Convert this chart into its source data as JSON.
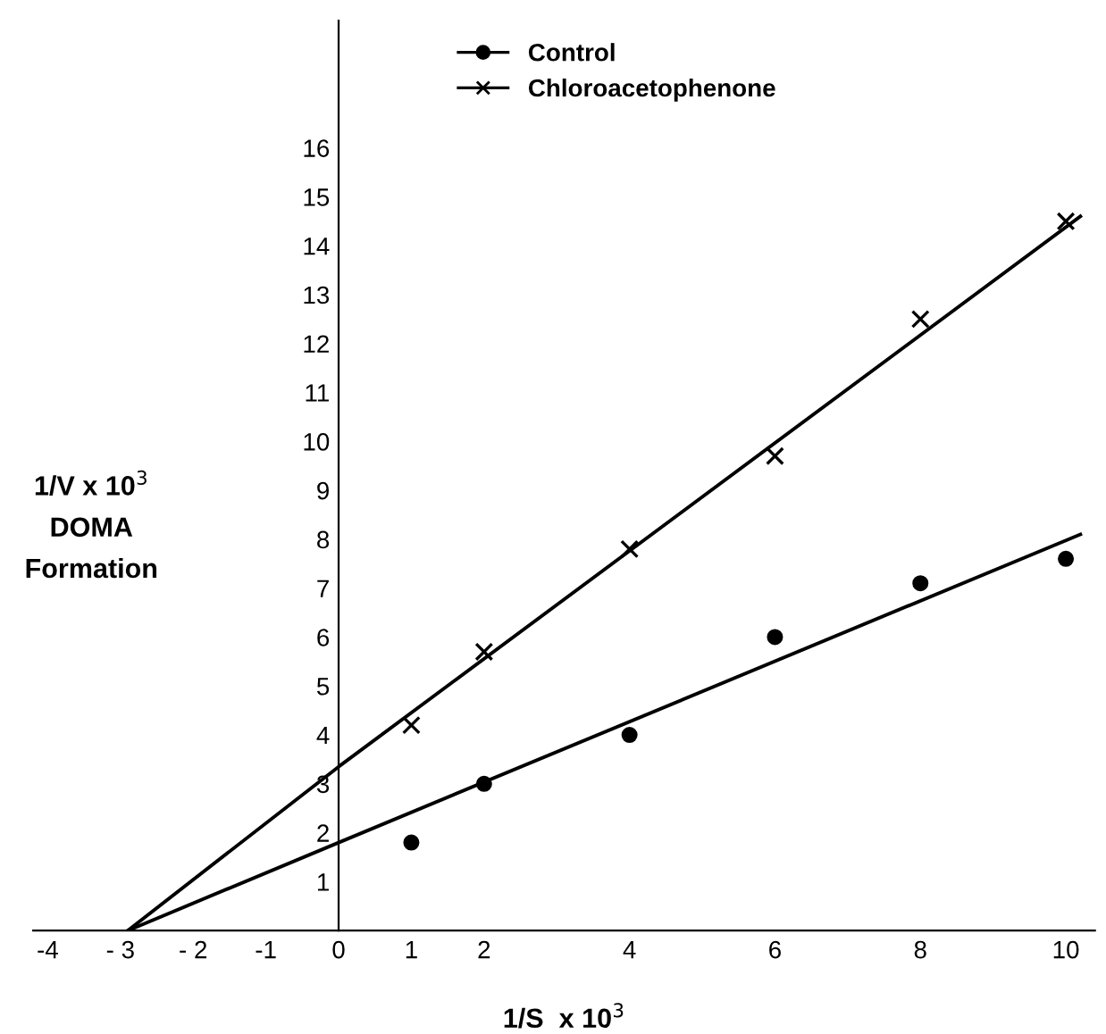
{
  "chart_data": {
    "type": "scatter",
    "xlabel": "1/S  x 10$^{3}$",
    "ylabel": "1/V x 10$^{3}$\nDOMA\nFormation",
    "xlim": [
      -4.2,
      10.4
    ],
    "ylim": [
      0,
      18.6
    ],
    "xticks": [
      -4,
      {
        "value": -3,
        "label": "- 3"
      },
      {
        "value": -2,
        "label": "- 2"
      },
      -1,
      0,
      1,
      2,
      4,
      6,
      8,
      10
    ],
    "yticks": [
      1,
      2,
      3,
      4,
      5,
      6,
      7,
      8,
      9,
      10,
      11,
      12,
      13,
      14,
      15,
      16
    ],
    "grid": false,
    "legend": "top",
    "line_style": "solid",
    "series": [
      {
        "name": "Control",
        "color": "#000000",
        "marker": "circle",
        "x": [
          1,
          2,
          4,
          6,
          8,
          10
        ],
        "values": [
          1.8,
          3.0,
          4.0,
          6.0,
          7.1,
          7.6
        ]
      },
      {
        "name": "Chloroacetophenone",
        "color": "#000000",
        "marker": "cross",
        "x": [
          1,
          2,
          4,
          6,
          8,
          10
        ],
        "values": [
          4.2,
          5.7,
          7.8,
          9.7,
          12.5,
          14.5
        ]
      },
      {
        "type": "line",
        "color": "#000000",
        "x": [
          -2.9,
          0,
          10.2
        ],
        "values": [
          0,
          1.8,
          8.1
        ]
      },
      {
        "type": "line",
        "color": "#000000",
        "x": [
          -2.9,
          0,
          10.2
        ],
        "values": [
          0,
          3.35,
          14.6
        ]
      }
    ]
  }
}
